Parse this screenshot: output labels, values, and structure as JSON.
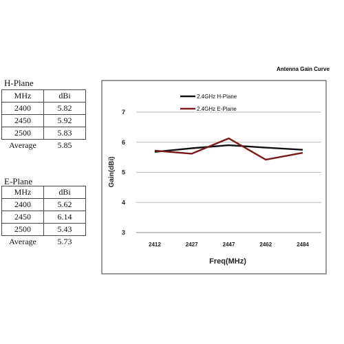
{
  "tables": [
    {
      "title": "H-Plane",
      "headers": [
        "MHz",
        "dBi"
      ],
      "rows": [
        [
          "2400",
          "5.82"
        ],
        [
          "2450",
          "5.92"
        ],
        [
          "2500",
          "5.83"
        ]
      ],
      "average_label": "Average",
      "average_value": "5.85"
    },
    {
      "title": "E-Plane",
      "headers": [
        "MHz",
        "dBi"
      ],
      "rows": [
        [
          "2400",
          "5.62"
        ],
        [
          "2450",
          "6.14"
        ],
        [
          "2500",
          "5.43"
        ]
      ],
      "average_label": "Average",
      "average_value": "5.73"
    }
  ],
  "chart_data": {
    "type": "line",
    "title": "Antenna Gain Curve",
    "xlabel": "Freq(MHz)",
    "ylabel": "Gain(dBi)",
    "categories": [
      "2412",
      "2427",
      "2447",
      "2462",
      "2484"
    ],
    "yticks": [
      3,
      4,
      5,
      6,
      7
    ],
    "ylim": [
      3,
      7
    ],
    "grid": true,
    "legend_position": "top-left",
    "series": [
      {
        "name": "2.4GHz H-Plane",
        "color": "#111111",
        "values": [
          5.68,
          5.8,
          5.9,
          5.82,
          5.75
        ]
      },
      {
        "name": "2.4GHz E-Plane",
        "color": "#7a1a1a",
        "values": [
          5.72,
          5.62,
          6.13,
          5.42,
          5.65
        ]
      }
    ]
  }
}
